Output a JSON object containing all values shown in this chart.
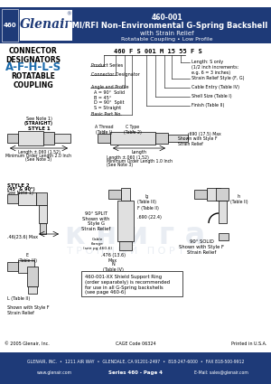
{
  "title_part": "460-001",
  "title_line1": "EMI/RFI Non-Environmental G-Spring Backshell",
  "title_line2": "with Strain Relief",
  "title_line3": "Rotatable Coupling • Low Profile",
  "header_bg": "#1e3a78",
  "header_text_color": "#ffffff",
  "logo_text": "Glenair",
  "logo_sub": ".",
  "series_label": "460",
  "connector_label": "CONNECTOR\nDESIGNATORS",
  "designators": "A-F-H-L-S",
  "rotatable": "ROTATABLE\nCOUPLING",
  "part_number_example": "460 F S 001 M 15 55 F S",
  "footer_company": "GLENAIR, INC.  •  1211 AIR WAY  •  GLENDALE, CA 91201-2497  •  818-247-6000  •  FAX 818-500-9912",
  "footer_web": "www.glenair.com",
  "footer_series": "Series 460 - Page 4",
  "footer_email": "E-Mail: sales@glenair.com",
  "footer_copyright": "© 2005 Glenair, Inc.",
  "footer_printed": "Printed in U.S.A.",
  "catalog_code": "CAGE Code 06324",
  "bg_color": "#ffffff",
  "blue_color": "#1e3a78",
  "designator_color": "#1a6aab",
  "gray1": "#cccccc",
  "gray2": "#e0e0e0",
  "gray3": "#d0d0d0",
  "gray4": "#b0b0b0"
}
